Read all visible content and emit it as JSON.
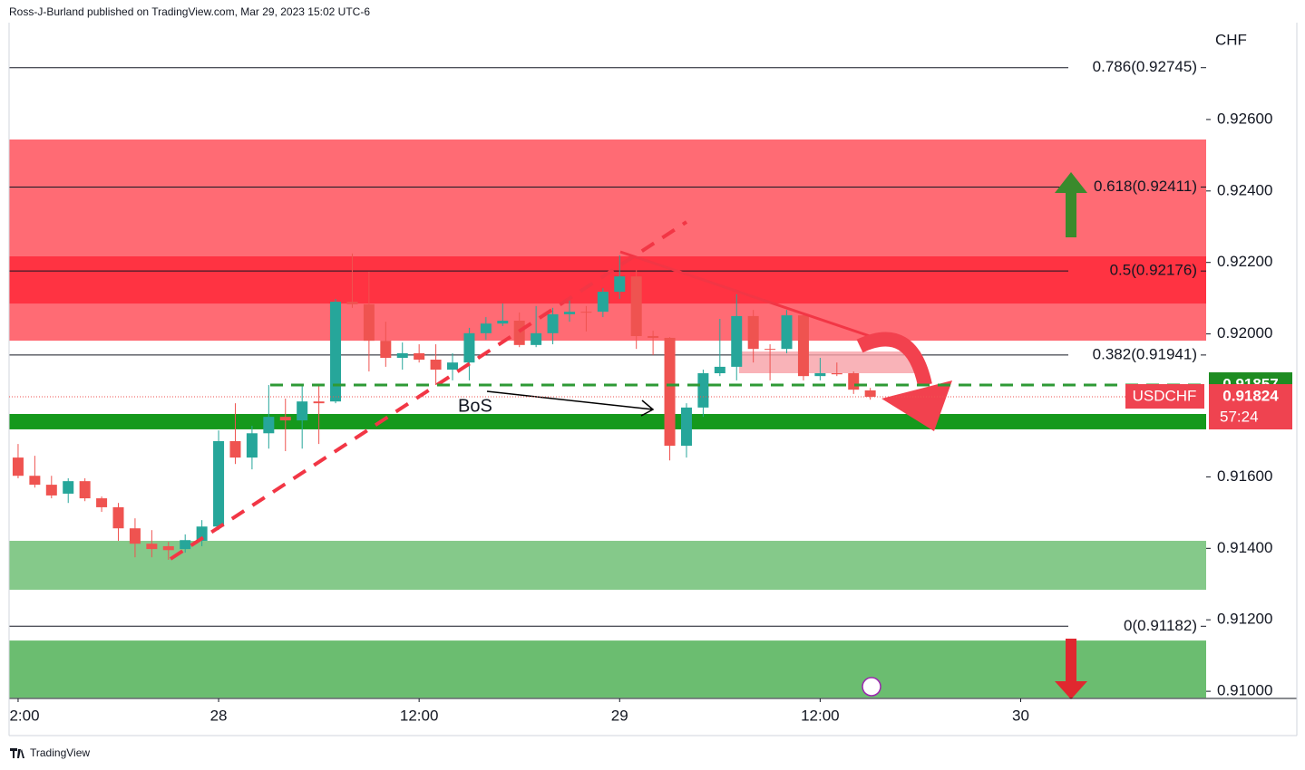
{
  "header": {
    "text": "Ross-J-Burland published on TradingView.com, Mar 29, 2023 15:02 UTC-6"
  },
  "footer": {
    "brand": "TradingView"
  },
  "chart_data": {
    "type": "candlestick",
    "symbol": "USDCHF",
    "axis_unit": "CHF",
    "countdown": "57:24",
    "last_price": 0.91824,
    "level_price": 0.91857,
    "annotation": "BoS",
    "up_color": "#26a69a",
    "down_color": "#ef5350",
    "x": [
      0,
      1,
      2,
      3,
      4,
      5,
      6,
      7,
      8,
      9,
      10,
      11,
      12,
      13,
      14,
      15,
      16,
      17,
      18,
      19,
      20,
      21,
      22,
      23,
      24,
      25,
      26,
      27,
      28,
      29,
      30,
      31,
      32,
      33,
      34,
      35,
      36,
      37,
      38,
      39,
      40,
      41,
      42,
      43,
      44,
      45,
      46,
      47,
      48,
      49,
      50,
      51
    ],
    "open": [
      0.91654,
      0.91603,
      0.91578,
      0.91553,
      0.91588,
      0.9154,
      0.91515,
      0.91456,
      0.91413,
      0.91406,
      0.91398,
      0.91421,
      0.91461,
      0.917,
      0.91654,
      0.91722,
      0.91768,
      0.91758,
      0.91811,
      0.91811,
      0.9209,
      0.92083,
      0.91981,
      0.91933,
      0.91946,
      0.91928,
      0.919,
      0.9192,
      0.92002,
      0.92029,
      0.92037,
      0.91969,
      0.92002,
      0.92055,
      0.92062,
      0.92062,
      0.92118,
      0.92161,
      0.91994,
      0.91989,
      0.91687,
      0.91794,
      0.9189,
      0.91908,
      0.9205,
      0.91958,
      0.91958,
      0.92052,
      0.91882,
      0.9189,
      0.9189,
      0.91842
    ],
    "high": [
      0.91692,
      0.91659,
      0.91603,
      0.91596,
      0.91596,
      0.91545,
      0.91527,
      0.91484,
      0.91451,
      0.91418,
      0.91439,
      0.91479,
      0.9173,
      0.91806,
      0.91743,
      0.91857,
      0.91819,
      0.91857,
      0.91857,
      0.92098,
      0.92225,
      0.92174,
      0.92034,
      0.91976,
      0.91971,
      0.91971,
      0.91946,
      0.92017,
      0.92047,
      0.92085,
      0.9206,
      0.92078,
      0.92073,
      0.92098,
      0.92078,
      0.92128,
      0.9222,
      0.92179,
      0.92009,
      0.91991,
      0.91806,
      0.919,
      0.92042,
      0.92111,
      0.92067,
      0.91971,
      0.92067,
      0.9206,
      0.91933,
      0.9192,
      0.91895,
      0.91849
    ],
    "low": [
      0.91596,
      0.9157,
      0.9154,
      0.91527,
      0.91532,
      0.91502,
      0.91421,
      0.91375,
      0.91375,
      0.91368,
      0.91388,
      0.91406,
      0.91451,
      0.91636,
      0.91621,
      0.91679,
      0.91672,
      0.91679,
      0.91692,
      0.91806,
      0.92073,
      0.91895,
      0.91908,
      0.919,
      0.9192,
      0.91857,
      0.9187,
      0.9187,
      0.91984,
      0.92022,
      0.91963,
      0.91963,
      0.91971,
      0.92034,
      0.92007,
      0.92047,
      0.92098,
      0.91958,
      0.91941,
      0.91646,
      0.91654,
      0.91768,
      0.91882,
      0.9187,
      0.9192,
      0.9187,
      0.91946,
      0.9187,
      0.9187,
      0.91882,
      0.91832,
      0.91816
    ],
    "close": [
      0.91603,
      0.91578,
      0.91548,
      0.91588,
      0.9154,
      0.91515,
      0.91456,
      0.91413,
      0.91398,
      0.91395,
      0.91423,
      0.91461,
      0.917,
      0.91654,
      0.91722,
      0.91768,
      0.91758,
      0.91811,
      0.91806,
      0.9209,
      0.92083,
      0.91981,
      0.91933,
      0.91946,
      0.91928,
      0.919,
      0.9192,
      0.92002,
      0.92029,
      0.92037,
      0.91969,
      0.92002,
      0.92055,
      0.92062,
      0.9206,
      0.92118,
      0.92161,
      0.91994,
      0.91989,
      0.91687,
      0.91794,
      0.9189,
      0.91908,
      0.9205,
      0.91958,
      0.91956,
      0.92052,
      0.91882,
      0.9189,
      0.91887,
      0.91844,
      0.91824
    ],
    "xlim": [
      -0.54,
      71.1
    ],
    "xticks": [
      {
        "value": 0,
        "label": "2:00"
      },
      {
        "value": 12,
        "label": "28"
      },
      {
        "value": 24,
        "label": "12:00"
      },
      {
        "value": 36,
        "label": "29"
      },
      {
        "value": 48,
        "label": "12:00"
      },
      {
        "value": 60,
        "label": "30"
      }
    ],
    "ylim": [
      0.9098,
      0.92871
    ],
    "yticks": [
      {
        "value": 0.926,
        "label": "0.92600"
      },
      {
        "value": 0.924,
        "label": "0.92400"
      },
      {
        "value": 0.922,
        "label": "0.92200"
      },
      {
        "value": 0.92,
        "label": "0.92000"
      },
      {
        "value": 0.916,
        "label": "0.91600"
      },
      {
        "value": 0.914,
        "label": "0.91400"
      },
      {
        "value": 0.912,
        "label": "0.91200"
      },
      {
        "value": 0.91,
        "label": "0.91000"
      }
    ],
    "levels": [
      {
        "value": 0.92745,
        "label": "0.786(0.92745)"
      },
      {
        "value": 0.92411,
        "label": "0.618(0.92411)"
      },
      {
        "value": 0.92176,
        "label": "0.5(0.92176)"
      },
      {
        "value": 0.91941,
        "label": "0.382(0.91941)"
      },
      {
        "value": 0.91182,
        "label": "0(0.91182)"
      }
    ],
    "zones": [
      {
        "from": 0.91981,
        "to": 0.92544,
        "color": "#ff6b74"
      },
      {
        "from": 0.92085,
        "to": 0.92217,
        "color": "#ff3342"
      },
      {
        "from": 0.91733,
        "to": 0.91776,
        "color": "#15991c"
      },
      {
        "from": 0.91284,
        "to": 0.91421,
        "color": "#85c98a"
      },
      {
        "from": 0.90982,
        "to": 0.91142,
        "color": "#6bbd70"
      }
    ]
  }
}
